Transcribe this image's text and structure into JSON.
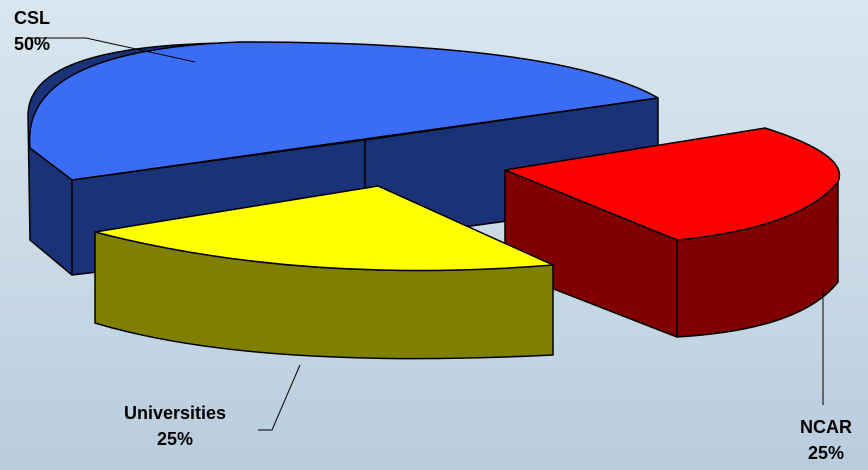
{
  "chart_data": {
    "type": "pie",
    "style": "3d-exploded",
    "categories": [
      "CSL",
      "Universities",
      "NCAR"
    ],
    "values": [
      50,
      25,
      25
    ],
    "labels": [
      {
        "name": "CSL",
        "percent": "50%"
      },
      {
        "name": "Universities",
        "percent": "25%"
      },
      {
        "name": "NCAR",
        "percent": "25%"
      }
    ],
    "colors": {
      "CSL": {
        "top": "#3b6cf6",
        "side": "#1a3378"
      },
      "Universities": {
        "top": "#ffff00",
        "side": "#808000"
      },
      "NCAR": {
        "top": "#ff0000",
        "side": "#800000"
      }
    },
    "title": "",
    "legend": "none"
  }
}
